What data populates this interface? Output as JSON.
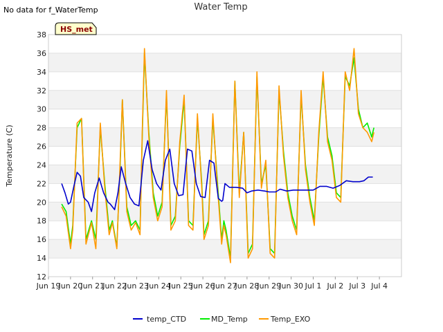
{
  "chart_data": {
    "type": "line",
    "title": "Water Temp",
    "no_data_note": "No data for f_WaterTemp",
    "station_tag": "HS_met",
    "xlabel": "",
    "ylabel": "Temperature (C)",
    "x_domain_days": [
      0,
      16
    ],
    "x_ticks": [
      {
        "d": 0,
        "label": "Jun 19"
      },
      {
        "d": 1,
        "label": "Jun 20"
      },
      {
        "d": 2,
        "label": "Jun 21"
      },
      {
        "d": 3,
        "label": "Jun 22"
      },
      {
        "d": 4,
        "label": "Jun 23"
      },
      {
        "d": 5,
        "label": "Jun 24"
      },
      {
        "d": 6,
        "label": "Jun 25"
      },
      {
        "d": 7,
        "label": "Jun 26"
      },
      {
        "d": 8,
        "label": "Jun 27"
      },
      {
        "d": 9,
        "label": "Jun 28"
      },
      {
        "d": 10,
        "label": "Jun 29"
      },
      {
        "d": 11,
        "label": "Jun 30"
      },
      {
        "d": 12,
        "label": "Jul 1"
      },
      {
        "d": 13,
        "label": "Jul 2"
      },
      {
        "d": 14,
        "label": "Jul 3"
      },
      {
        "d": 15,
        "label": "Jul 4"
      }
    ],
    "ylim": [
      12,
      38
    ],
    "y_ticks": [
      12,
      14,
      16,
      18,
      20,
      22,
      24,
      26,
      28,
      30,
      32,
      34,
      36,
      38
    ],
    "grid_bands": true,
    "legend_position": "bottom-center",
    "series": [
      {
        "name": "temp_CTD",
        "color": "#0000cc",
        "x": [
          0.6,
          0.75,
          0.9,
          1.0,
          1.15,
          1.3,
          1.45,
          1.6,
          1.8,
          1.95,
          2.1,
          2.3,
          2.5,
          2.7,
          2.8,
          3.0,
          3.15,
          3.3,
          3.5,
          3.7,
          3.9,
          4.1,
          4.3,
          4.5,
          4.7,
          4.9,
          5.1,
          5.3,
          5.5,
          5.7,
          5.9,
          6.1,
          6.3,
          6.5,
          6.7,
          6.9,
          7.1,
          7.3,
          7.5,
          7.7,
          7.85,
          7.9,
          8.0,
          8.2,
          8.5,
          8.8,
          9.0,
          9.2,
          9.5,
          9.8,
          10.0,
          10.3,
          10.5,
          10.8,
          11.1,
          11.4,
          11.7,
          12.0,
          12.3,
          12.6,
          12.9,
          13.2,
          13.5,
          13.8,
          14.1,
          14.3,
          14.5,
          14.7
        ],
        "y": [
          22.0,
          21.0,
          19.8,
          20.0,
          21.7,
          23.2,
          22.8,
          20.5,
          20.0,
          19.0,
          21.0,
          22.6,
          21.0,
          20.0,
          19.8,
          19.2,
          21.0,
          23.8,
          22.0,
          20.5,
          19.8,
          19.6,
          24.5,
          26.6,
          23.5,
          22.0,
          21.3,
          24.5,
          25.7,
          22.0,
          20.7,
          20.8,
          25.7,
          25.5,
          22.0,
          20.6,
          20.5,
          24.5,
          24.2,
          20.4,
          20.1,
          20.2,
          22.0,
          21.6,
          21.6,
          21.5,
          21.0,
          21.2,
          21.3,
          21.2,
          21.1,
          21.1,
          21.4,
          21.2,
          21.3,
          21.3,
          21.3,
          21.3,
          21.7,
          21.7,
          21.5,
          21.8,
          22.3,
          22.2,
          22.2,
          22.3,
          22.7,
          22.7
        ]
      },
      {
        "name": "MD_Temp",
        "color": "#00ee00",
        "x": [
          0.6,
          0.8,
          1.0,
          1.1,
          1.3,
          1.5,
          1.7,
          1.95,
          2.15,
          2.35,
          2.55,
          2.75,
          2.9,
          3.1,
          3.25,
          3.35,
          3.55,
          3.75,
          3.95,
          4.15,
          4.25,
          4.35,
          4.55,
          4.75,
          4.95,
          5.15,
          5.35,
          5.45,
          5.55,
          5.75,
          5.95,
          6.15,
          6.35,
          6.55,
          6.75,
          6.95,
          7.05,
          7.25,
          7.45,
          7.65,
          7.85,
          7.95,
          8.05,
          8.25,
          8.45,
          8.65,
          8.85,
          9.05,
          9.25,
          9.45,
          9.65,
          9.85,
          10.05,
          10.25,
          10.45,
          10.65,
          10.85,
          11.05,
          11.25,
          11.45,
          11.65,
          11.85,
          12.05,
          12.25,
          12.45,
          12.65,
          12.85,
          13.05,
          13.25,
          13.45,
          13.65,
          13.85,
          14.05,
          14.25,
          14.45,
          14.65,
          14.75
        ],
        "y": [
          19.8,
          19.0,
          15.5,
          17.5,
          28.0,
          29.0,
          16.0,
          18.0,
          16.0,
          28.0,
          22.0,
          17.0,
          18.0,
          15.2,
          24.0,
          31.0,
          19.5,
          17.5,
          18.0,
          17.0,
          27.0,
          36.0,
          27.5,
          21.0,
          18.5,
          20.0,
          31.5,
          25.0,
          17.5,
          18.5,
          26.0,
          31.0,
          18.0,
          17.5,
          29.0,
          22.0,
          16.5,
          18.0,
          29.0,
          22.5,
          16.0,
          18.0,
          17.0,
          14.0,
          33.0,
          21.0,
          27.5,
          14.5,
          15.5,
          33.5,
          22.0,
          24.0,
          15.0,
          14.5,
          32.0,
          25.5,
          21.0,
          18.5,
          17.0,
          31.5,
          24.0,
          20.5,
          18.0,
          27.0,
          33.5,
          27.0,
          25.0,
          21.0,
          20.5,
          33.5,
          32.5,
          35.5,
          30.0,
          28.0,
          28.5,
          27.0,
          28.0
        ]
      },
      {
        "name": "Temp_EXO",
        "color": "#ff9900",
        "x": [
          0.6,
          0.8,
          1.0,
          1.1,
          1.3,
          1.5,
          1.7,
          1.95,
          2.15,
          2.35,
          2.55,
          2.75,
          2.9,
          3.1,
          3.25,
          3.35,
          3.55,
          3.75,
          3.95,
          4.15,
          4.25,
          4.35,
          4.55,
          4.75,
          4.95,
          5.15,
          5.35,
          5.45,
          5.55,
          5.75,
          5.95,
          6.15,
          6.35,
          6.55,
          6.75,
          6.95,
          7.05,
          7.25,
          7.45,
          7.65,
          7.85,
          7.95,
          8.05,
          8.25,
          8.45,
          8.65,
          8.85,
          9.05,
          9.25,
          9.45,
          9.65,
          9.85,
          10.05,
          10.25,
          10.45,
          10.65,
          10.85,
          11.05,
          11.25,
          11.45,
          11.65,
          11.85,
          12.05,
          12.25,
          12.45,
          12.65,
          12.85,
          13.05,
          13.25,
          13.45,
          13.65,
          13.85,
          14.05,
          14.25,
          14.45,
          14.65,
          14.75
        ],
        "y": [
          19.5,
          18.5,
          15.0,
          17.0,
          28.5,
          29.0,
          15.5,
          17.8,
          15.0,
          28.5,
          21.5,
          16.5,
          17.8,
          15.0,
          24.5,
          31.0,
          19.0,
          17.0,
          17.8,
          16.5,
          27.5,
          36.5,
          27.0,
          20.5,
          18.0,
          19.5,
          32.0,
          24.5,
          17.0,
          18.0,
          26.5,
          31.5,
          17.5,
          17.0,
          29.5,
          21.5,
          16.0,
          17.5,
          29.5,
          22.0,
          15.5,
          17.5,
          16.5,
          13.5,
          33.0,
          20.5,
          27.5,
          14.0,
          15.0,
          34.0,
          21.5,
          24.5,
          14.5,
          14.0,
          32.5,
          25.0,
          20.5,
          18.0,
          16.5,
          32.0,
          23.5,
          20.0,
          17.5,
          27.5,
          34.0,
          26.5,
          24.5,
          20.5,
          20.0,
          34.0,
          32.0,
          36.5,
          29.5,
          28.0,
          27.5,
          26.5,
          27.5
        ]
      }
    ]
  }
}
